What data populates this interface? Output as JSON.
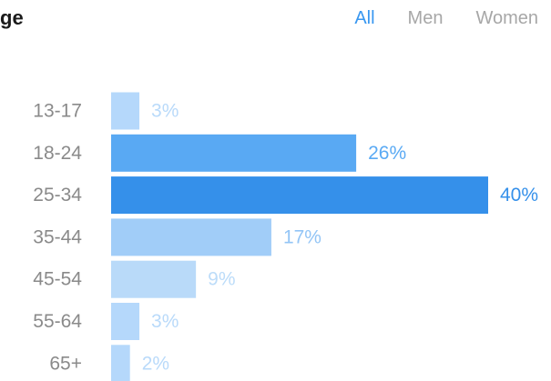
{
  "header": {
    "title": "ge"
  },
  "filters": {
    "tabs": [
      {
        "label": "All",
        "active": true
      },
      {
        "label": "Men",
        "active": false
      },
      {
        "label": "Women",
        "active": false
      }
    ]
  },
  "colors": {
    "accent": "#3897f0",
    "inactive_tab": "#a7a7a7",
    "category_text": "#8a8a8a"
  },
  "chart_data": {
    "type": "bar",
    "orientation": "horizontal",
    "title": "ge",
    "xlabel": "",
    "ylabel": "",
    "categories": [
      "13-17",
      "18-24",
      "25-34",
      "35-44",
      "45-54",
      "55-64",
      "65+"
    ],
    "values": [
      3,
      26,
      40,
      17,
      9,
      3,
      2
    ],
    "value_labels": [
      "3%",
      "26%",
      "40%",
      "17%",
      "9%",
      "3%",
      "2%"
    ],
    "xlim": [
      0,
      40
    ],
    "grid": false,
    "legend": "none",
    "bar_colors": [
      "#b5d8fb",
      "#59a9f3",
      "#3590ea",
      "#a1cdf8",
      "#b9daf9",
      "#b5d8fb",
      "#b5d8fb"
    ],
    "label_colors": [
      "#b9dafa",
      "#5aaaf4",
      "#3590ea",
      "#93c5f6",
      "#bcdcf9",
      "#b9dafa",
      "#b9dafa"
    ]
  }
}
